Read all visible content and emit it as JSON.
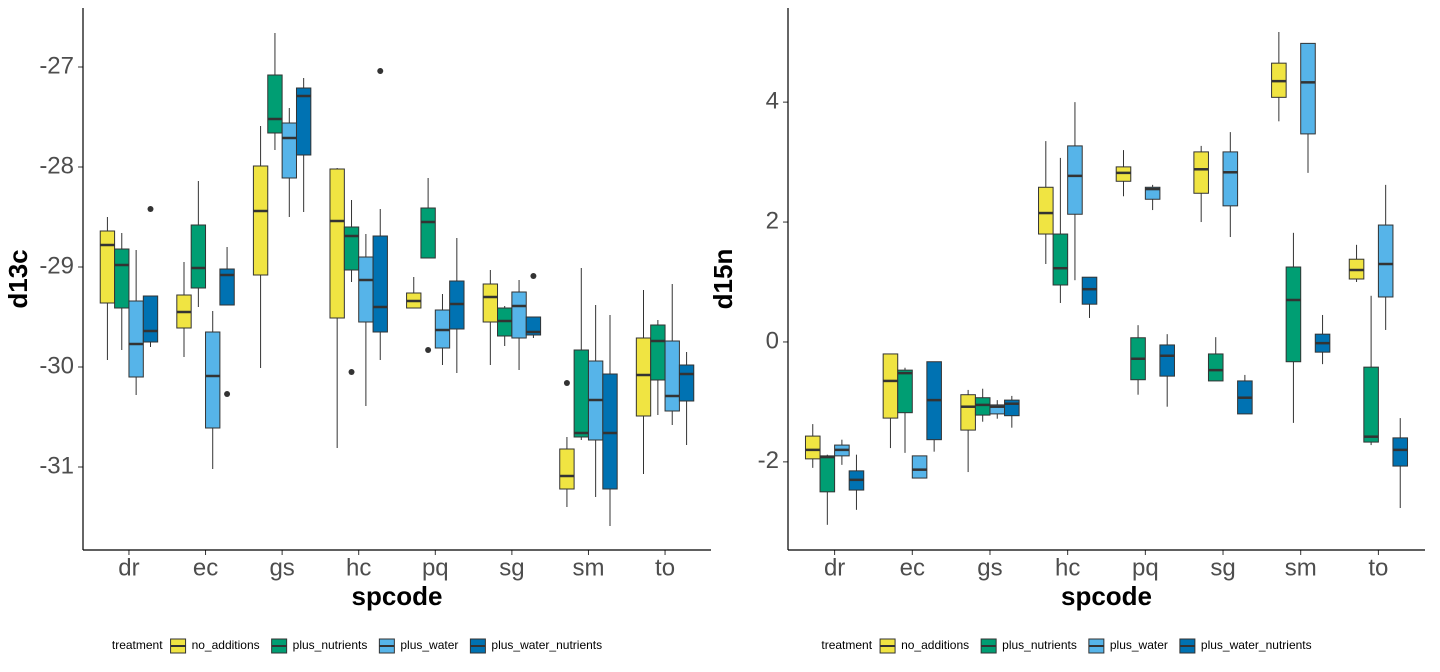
{
  "chart_data": [
    {
      "type": "boxplot",
      "x_label": "spcode",
      "y_label": "d13c",
      "legend_title": "treatment",
      "categories": [
        "dr",
        "ec",
        "gs",
        "hc",
        "pq",
        "sg",
        "sm",
        "to"
      ],
      "ylim": [
        -31.83,
        -26.41
      ],
      "yticks": [
        -31,
        -30,
        -29,
        -28,
        -27
      ],
      "series": [
        {
          "name": "no_additions",
          "color": "#F0E442",
          "boxes": [
            {
              "whislo": -29.93,
              "q1": -29.36,
              "med": -28.78,
              "q3": -28.64,
              "whishi": -28.5
            },
            {
              "whislo": -29.9,
              "q1": -29.61,
              "med": -29.45,
              "q3": -29.28,
              "whishi": -28.95
            },
            {
              "whislo": -30.01,
              "q1": -29.08,
              "med": -28.44,
              "q3": -27.99,
              "whishi": -27.59
            },
            {
              "whislo": -30.81,
              "q1": -29.51,
              "med": -28.54,
              "q3": -28.02,
              "whishi": -28.01
            },
            {
              "whislo": -29.41,
              "q1": -29.41,
              "med": -29.34,
              "q3": -29.26,
              "whishi": -29.1
            },
            {
              "whislo": -29.98,
              "q1": -29.55,
              "med": -29.3,
              "q3": -29.17,
              "whishi": -29.03
            },
            {
              "whislo": -31.4,
              "q1": -31.22,
              "med": -31.09,
              "q3": -30.82,
              "whishi": -30.7,
              "fliers": [
                -30.16
              ]
            },
            {
              "whislo": -31.07,
              "q1": -30.49,
              "med": -30.08,
              "q3": -29.71,
              "whishi": -29.23
            }
          ]
        },
        {
          "name": "plus_nutrients",
          "color": "#009E73",
          "boxes": [
            {
              "whislo": -29.83,
              "q1": -29.41,
              "med": -28.98,
              "q3": -28.82,
              "whishi": -28.66
            },
            {
              "whislo": -29.4,
              "q1": -29.21,
              "med": -29.01,
              "q3": -28.58,
              "whishi": -28.14
            },
            {
              "whislo": -27.83,
              "q1": -27.66,
              "med": -27.52,
              "q3": -27.08,
              "whishi": -26.66
            },
            {
              "whislo": -29.15,
              "q1": -29.03,
              "med": -28.69,
              "q3": -28.6,
              "whishi": -28.33,
              "fliers": [
                -30.05
              ]
            },
            {
              "whislo": -28.91,
              "q1": -28.91,
              "med": -28.55,
              "q3": -28.41,
              "whishi": -28.11,
              "fliers": [
                -29.83
              ]
            },
            {
              "whislo": -29.79,
              "q1": -29.69,
              "med": -29.54,
              "q3": -29.41,
              "whishi": -29.39
            },
            {
              "whislo": -30.73,
              "q1": -30.7,
              "med": -30.66,
              "q3": -29.83,
              "whishi": -29.01
            },
            {
              "whislo": -30.48,
              "q1": -30.13,
              "med": -29.74,
              "q3": -29.58,
              "whishi": -29.53
            }
          ]
        },
        {
          "name": "plus_water",
          "color": "#56B4E9",
          "boxes": [
            {
              "whislo": -30.28,
              "q1": -30.1,
              "med": -29.77,
              "q3": -29.34,
              "whishi": -28.83
            },
            {
              "whislo": -31.02,
              "q1": -30.61,
              "med": -30.09,
              "q3": -29.65,
              "whishi": -29.44
            },
            {
              "whislo": -28.5,
              "q1": -28.11,
              "med": -27.71,
              "q3": -27.56,
              "whishi": -27.41
            },
            {
              "whislo": -30.39,
              "q1": -29.55,
              "med": -29.13,
              "q3": -28.9,
              "whishi": -28.67
            },
            {
              "whislo": -29.98,
              "q1": -29.81,
              "med": -29.63,
              "q3": -29.43,
              "whishi": -29.27
            },
            {
              "whislo": -30.03,
              "q1": -29.71,
              "med": -29.39,
              "q3": -29.25,
              "whishi": -29.13
            },
            {
              "whislo": -31.3,
              "q1": -30.73,
              "med": -30.33,
              "q3": -29.94,
              "whishi": -29.38
            },
            {
              "whislo": -30.58,
              "q1": -30.44,
              "med": -30.29,
              "q3": -29.74,
              "whishi": -29.17
            }
          ]
        },
        {
          "name": "plus_water_nutrients",
          "color": "#0072B2",
          "boxes": [
            {
              "whislo": -29.8,
              "q1": -29.75,
              "med": -29.64,
              "q3": -29.29,
              "whishi": -29.29,
              "fliers": [
                -28.42
              ]
            },
            {
              "whislo": -29.38,
              "q1": -29.38,
              "med": -29.08,
              "q3": -29.02,
              "whishi": -28.8,
              "fliers": [
                -30.27
              ]
            },
            {
              "whislo": -28.45,
              "q1": -27.88,
              "med": -27.29,
              "q3": -27.21,
              "whishi": -27.11
            },
            {
              "whislo": -29.93,
              "q1": -29.65,
              "med": -29.4,
              "q3": -28.69,
              "whishi": -28.42,
              "fliers": [
                -27.04
              ]
            },
            {
              "whislo": -30.06,
              "q1": -29.62,
              "med": -29.37,
              "q3": -29.14,
              "whishi": -28.71
            },
            {
              "whislo": -29.71,
              "q1": -29.68,
              "med": -29.65,
              "q3": -29.5,
              "whishi": -29.5,
              "fliers": [
                -29.09
              ]
            },
            {
              "whislo": -31.59,
              "q1": -31.22,
              "med": -30.66,
              "q3": -30.07,
              "whishi": -29.48
            },
            {
              "whislo": -30.78,
              "q1": -30.34,
              "med": -30.07,
              "q3": -29.98,
              "whishi": -29.85
            }
          ]
        }
      ]
    },
    {
      "type": "boxplot",
      "x_label": "spcode",
      "y_label": "d15n",
      "legend_title": "treatment",
      "categories": [
        "dr",
        "ec",
        "gs",
        "hc",
        "pq",
        "sg",
        "sm",
        "to"
      ],
      "ylim": [
        -3.47,
        5.57
      ],
      "yticks": [
        -2,
        0,
        2,
        4
      ],
      "series": [
        {
          "name": "no_additions",
          "color": "#F0E442",
          "boxes": [
            {
              "whislo": -2.1,
              "q1": -1.95,
              "med": -1.8,
              "q3": -1.57,
              "whishi": -1.37
            },
            {
              "whislo": -1.77,
              "q1": -1.27,
              "med": -0.65,
              "q3": -0.2,
              "whishi": -0.2
            },
            {
              "whislo": -2.17,
              "q1": -1.47,
              "med": -1.08,
              "q3": -0.88,
              "whishi": -0.8
            },
            {
              "whislo": 1.3,
              "q1": 1.8,
              "med": 2.15,
              "q3": 2.58,
              "whishi": 3.35
            },
            {
              "whislo": 2.43,
              "q1": 2.68,
              "med": 2.82,
              "q3": 2.92,
              "whishi": 3.2
            },
            {
              "whislo": 2.0,
              "q1": 2.48,
              "med": 2.88,
              "q3": 3.17,
              "whishi": 3.27
            },
            {
              "whislo": 3.68,
              "q1": 4.08,
              "med": 4.35,
              "q3": 4.65,
              "whishi": 5.17
            },
            {
              "whislo": 1.0,
              "q1": 1.05,
              "med": 1.2,
              "q3": 1.38,
              "whishi": 1.62
            }
          ]
        },
        {
          "name": "plus_nutrients",
          "color": "#009E73",
          "boxes": [
            {
              "whislo": -3.05,
              "q1": -2.5,
              "med": -1.92,
              "q3": -1.9,
              "whishi": -1.88
            },
            {
              "whislo": -1.85,
              "q1": -1.18,
              "med": -0.52,
              "q3": -0.47,
              "whishi": -0.43
            },
            {
              "whislo": -1.33,
              "q1": -1.22,
              "med": -1.05,
              "q3": -0.93,
              "whishi": -0.78
            },
            {
              "whislo": 0.65,
              "q1": 0.95,
              "med": 1.23,
              "q3": 1.8,
              "whishi": 3.07
            },
            {
              "whislo": -0.88,
              "q1": -0.63,
              "med": -0.28,
              "q3": 0.07,
              "whishi": 0.28
            },
            {
              "whislo": -0.65,
              "q1": -0.65,
              "med": -0.47,
              "q3": -0.2,
              "whishi": 0.08
            },
            {
              "whislo": -1.35,
              "q1": -0.33,
              "med": 0.7,
              "q3": 1.25,
              "whishi": 1.82
            },
            {
              "whislo": -1.72,
              "q1": -1.67,
              "med": -1.58,
              "q3": -0.42,
              "whishi": 0.77
            }
          ]
        },
        {
          "name": "plus_water",
          "color": "#56B4E9",
          "boxes": [
            {
              "whislo": -2.05,
              "q1": -1.9,
              "med": -1.8,
              "q3": -1.72,
              "whishi": -1.63
            },
            {
              "whislo": -2.27,
              "q1": -2.27,
              "med": -2.13,
              "q3": -1.9,
              "whishi": -1.9
            },
            {
              "whislo": -1.28,
              "q1": -1.2,
              "med": -1.08,
              "q3": -1.05,
              "whishi": -0.97
            },
            {
              "whislo": 1.03,
              "q1": 2.13,
              "med": 2.77,
              "q3": 3.27,
              "whishi": 4.0
            },
            {
              "whislo": 2.2,
              "q1": 2.38,
              "med": 2.55,
              "q3": 2.58,
              "whishi": 2.62
            },
            {
              "whislo": 1.75,
              "q1": 2.27,
              "med": 2.83,
              "q3": 3.17,
              "whishi": 3.5
            },
            {
              "whislo": 2.82,
              "q1": 3.47,
              "med": 4.33,
              "q3": 4.98,
              "whishi": 4.98
            },
            {
              "whislo": 0.2,
              "q1": 0.75,
              "med": 1.3,
              "q3": 1.95,
              "whishi": 2.62
            }
          ]
        },
        {
          "name": "plus_water_nutrients",
          "color": "#0072B2",
          "boxes": [
            {
              "whislo": -2.8,
              "q1": -2.47,
              "med": -2.3,
              "q3": -2.15,
              "whishi": -1.88
            },
            {
              "whislo": -1.83,
              "q1": -1.63,
              "med": -0.97,
              "q3": -0.33,
              "whishi": -0.33
            },
            {
              "whislo": -1.43,
              "q1": -1.23,
              "med": -1.03,
              "q3": -0.97,
              "whishi": -0.9
            },
            {
              "whislo": 0.4,
              "q1": 0.63,
              "med": 0.88,
              "q3": 1.08,
              "whishi": 1.08
            },
            {
              "whislo": -1.08,
              "q1": -0.57,
              "med": -0.23,
              "q3": -0.05,
              "whishi": 0.13
            },
            {
              "whislo": -1.2,
              "q1": -1.2,
              "med": -0.93,
              "q3": -0.65,
              "whishi": -0.55
            },
            {
              "whislo": -0.37,
              "q1": -0.17,
              "med": -0.02,
              "q3": 0.13,
              "whishi": 0.45
            },
            {
              "whislo": -2.77,
              "q1": -2.07,
              "med": -1.8,
              "q3": -1.6,
              "whishi": -1.27
            }
          ]
        }
      ]
    }
  ]
}
